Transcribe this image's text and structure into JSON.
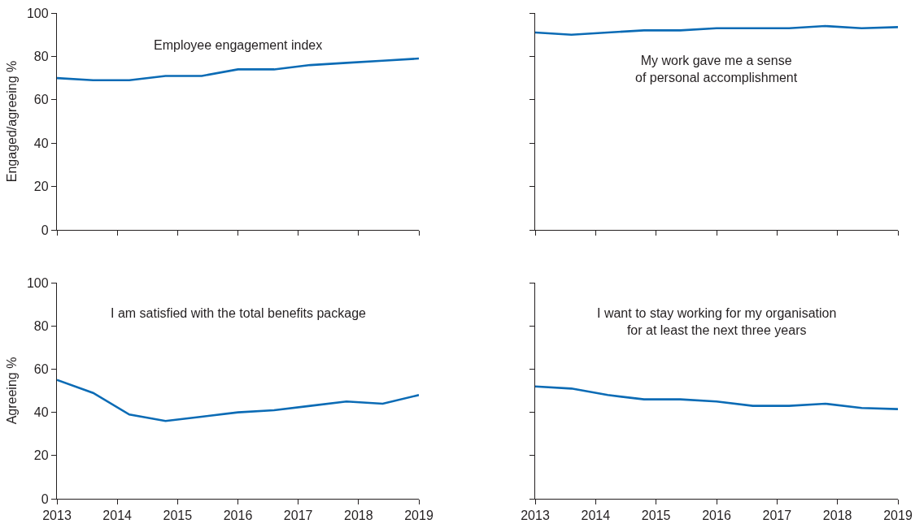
{
  "chart_data": [
    {
      "type": "line",
      "title": "Employee engagement index",
      "ylabel": "Engaged/agreeing %",
      "x": [
        2013,
        2013.6,
        2014.2,
        2014.8,
        2015.4,
        2016,
        2016.6,
        2017.2,
        2017.8,
        2018.4,
        2019
      ],
      "series": [
        {
          "color": "#0b6bb5",
          "values": [
            70,
            69,
            69,
            71,
            71,
            74,
            74,
            76,
            77,
            78,
            79
          ]
        }
      ],
      "xlim": [
        2013,
        2019
      ],
      "xticks": [
        2013,
        2014,
        2015,
        2016,
        2017,
        2018,
        2019
      ],
      "ylim": [
        0,
        100
      ],
      "yticks": [
        0,
        20,
        40,
        60,
        80,
        100
      ],
      "tick_labels": "y"
    },
    {
      "type": "line",
      "title": "My work gave me a sense\nof personal accomplishment",
      "x": [
        2013,
        2013.6,
        2014.2,
        2014.8,
        2015.4,
        2016,
        2016.6,
        2017.2,
        2017.8,
        2018.4,
        2019
      ],
      "series": [
        {
          "color": "#0b6bb5",
          "values": [
            91,
            90,
            91,
            92,
            92,
            93,
            93,
            93,
            94,
            93,
            93.5
          ]
        }
      ],
      "xlim": [
        2013,
        2019
      ],
      "xticks": [
        2013,
        2014,
        2015,
        2016,
        2017,
        2018,
        2019
      ],
      "ylim": [
        0,
        100
      ],
      "yticks": [
        0,
        20,
        40,
        60,
        80,
        100
      ],
      "tick_labels": false
    },
    {
      "type": "line",
      "title": "I am satisfied with the total benefits package",
      "ylabel": "Agreeing %",
      "x": [
        2013,
        2013.6,
        2014.2,
        2014.8,
        2015.4,
        2016,
        2016.6,
        2017.2,
        2017.8,
        2018.4,
        2019
      ],
      "series": [
        {
          "color": "#0b6bb5",
          "values": [
            55,
            49,
            39,
            36,
            38,
            40,
            41,
            43,
            45,
            44,
            48
          ]
        }
      ],
      "xlim": [
        2013,
        2019
      ],
      "xticks": [
        2013,
        2014,
        2015,
        2016,
        2017,
        2018,
        2019
      ],
      "ylim": [
        0,
        100
      ],
      "yticks": [
        0,
        20,
        40,
        60,
        80,
        100
      ]
    },
    {
      "type": "line",
      "title": "I want to stay working for my organisation\nfor at least the next three years",
      "x": [
        2013,
        2013.6,
        2014.2,
        2014.8,
        2015.4,
        2016,
        2016.6,
        2017.2,
        2017.8,
        2018.4,
        2019
      ],
      "series": [
        {
          "color": "#0b6bb5",
          "values": [
            52,
            51,
            48,
            46,
            46,
            45,
            43,
            43,
            44,
            42,
            41.5
          ]
        }
      ],
      "xlim": [
        2013,
        2019
      ],
      "xticks": [
        2013,
        2014,
        2015,
        2016,
        2017,
        2018,
        2019
      ],
      "ylim": [
        0,
        100
      ],
      "yticks": [
        0,
        20,
        40,
        60,
        80,
        100
      ],
      "tick_labels": "x"
    }
  ]
}
